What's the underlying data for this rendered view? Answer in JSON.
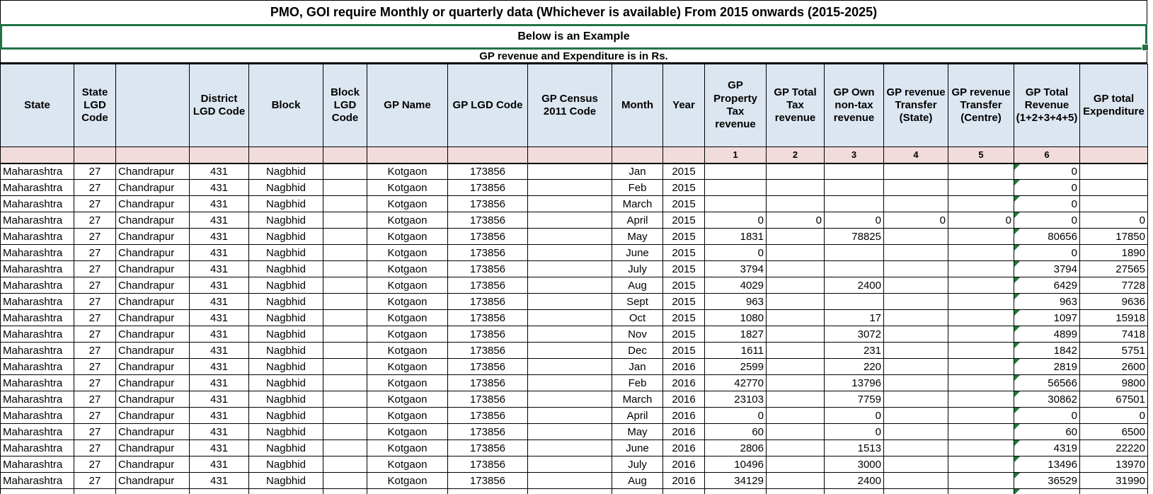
{
  "title": "PMO, GOI require Monthly or quarterly data (Whichever is available) From 2015 onwards (2015-2025)",
  "banner": "Below is an Example",
  "note": "GP revenue and Expenditure is in Rs.",
  "colors": {
    "selection_green": "#217346",
    "flag_green": "#1e7b3c",
    "header_fill": "#dce6f1",
    "index_row_fill": "#f2dcdb",
    "grid_border": "#000000"
  },
  "table": {
    "columns": [
      {
        "label": "State",
        "index": ""
      },
      {
        "label": "State LGD Code",
        "index": ""
      },
      {
        "label": "",
        "index": ""
      },
      {
        "label": "District LGD Code",
        "index": ""
      },
      {
        "label": "Block",
        "index": ""
      },
      {
        "label": "Block LGD Code",
        "index": ""
      },
      {
        "label": "GP Name",
        "index": ""
      },
      {
        "label": "GP LGD Code",
        "index": ""
      },
      {
        "label": "GP Census 2011 Code",
        "index": ""
      },
      {
        "label": "Month",
        "index": ""
      },
      {
        "label": "Year",
        "index": ""
      },
      {
        "label": "GP Property Tax revenue",
        "index": "1"
      },
      {
        "label": "GP Total Tax revenue",
        "index": "2"
      },
      {
        "label": "GP Own non-tax revenue",
        "index": "3"
      },
      {
        "label": "GP revenue Transfer (State)",
        "index": "4"
      },
      {
        "label": "GP revenue Transfer (Centre)",
        "index": "5"
      },
      {
        "label": "GP Total Revenue (1+2+3+4+5)",
        "index": "6"
      },
      {
        "label": "GP total Expenditure",
        "index": ""
      }
    ],
    "rows": [
      {
        "flag": true,
        "cells": [
          "Maharashtra",
          "27",
          "Chandrapur",
          "431",
          "Nagbhid",
          "",
          "Kotgaon",
          "173856",
          "",
          "Jan",
          "2015",
          "",
          "",
          "",
          "",
          "",
          "0",
          ""
        ]
      },
      {
        "flag": true,
        "cells": [
          "Maharashtra",
          "27",
          "Chandrapur",
          "431",
          "Nagbhid",
          "",
          "Kotgaon",
          "173856",
          "",
          "Feb",
          "2015",
          "",
          "",
          "",
          "",
          "",
          "0",
          ""
        ]
      },
      {
        "flag": true,
        "cells": [
          "Maharashtra",
          "27",
          "Chandrapur",
          "431",
          "Nagbhid",
          "",
          "Kotgaon",
          "173856",
          "",
          "March",
          "2015",
          "",
          "",
          "",
          "",
          "",
          "0",
          ""
        ]
      },
      {
        "flag": true,
        "cells": [
          "Maharashtra",
          "27",
          "Chandrapur",
          "431",
          "Nagbhid",
          "",
          "Kotgaon",
          "173856",
          "",
          "April",
          "2015",
          "0",
          "0",
          "0",
          "0",
          "0",
          "0",
          "0"
        ]
      },
      {
        "flag": true,
        "cells": [
          "Maharashtra",
          "27",
          "Chandrapur",
          "431",
          "Nagbhid",
          "",
          "Kotgaon",
          "173856",
          "",
          "May",
          "2015",
          "1831",
          "",
          "78825",
          "",
          "",
          "80656",
          "17850"
        ]
      },
      {
        "flag": true,
        "cells": [
          "Maharashtra",
          "27",
          "Chandrapur",
          "431",
          "Nagbhid",
          "",
          "Kotgaon",
          "173856",
          "",
          "June",
          "2015",
          "0",
          "",
          "",
          "",
          "",
          "0",
          "1890"
        ]
      },
      {
        "flag": true,
        "cells": [
          "Maharashtra",
          "27",
          "Chandrapur",
          "431",
          "Nagbhid",
          "",
          "Kotgaon",
          "173856",
          "",
          "July",
          "2015",
          "3794",
          "",
          "",
          "",
          "",
          "3794",
          "27565"
        ]
      },
      {
        "flag": true,
        "cells": [
          "Maharashtra",
          "27",
          "Chandrapur",
          "431",
          "Nagbhid",
          "",
          "Kotgaon",
          "173856",
          "",
          "Aug",
          "2015",
          "4029",
          "",
          "2400",
          "",
          "",
          "6429",
          "7728"
        ]
      },
      {
        "flag": true,
        "cells": [
          "Maharashtra",
          "27",
          "Chandrapur",
          "431",
          "Nagbhid",
          "",
          "Kotgaon",
          "173856",
          "",
          "Sept",
          "2015",
          "963",
          "",
          "",
          "",
          "",
          "963",
          "9636"
        ]
      },
      {
        "flag": true,
        "cells": [
          "Maharashtra",
          "27",
          "Chandrapur",
          "431",
          "Nagbhid",
          "",
          "Kotgaon",
          "173856",
          "",
          "Oct",
          "2015",
          "1080",
          "",
          "17",
          "",
          "",
          "1097",
          "15918"
        ]
      },
      {
        "flag": true,
        "cells": [
          "Maharashtra",
          "27",
          "Chandrapur",
          "431",
          "Nagbhid",
          "",
          "Kotgaon",
          "173856",
          "",
          "Nov",
          "2015",
          "1827",
          "",
          "3072",
          "",
          "",
          "4899",
          "7418"
        ]
      },
      {
        "flag": true,
        "cells": [
          "Maharashtra",
          "27",
          "Chandrapur",
          "431",
          "Nagbhid",
          "",
          "Kotgaon",
          "173856",
          "",
          "Dec",
          "2015",
          "1611",
          "",
          "231",
          "",
          "",
          "1842",
          "5751"
        ]
      },
      {
        "flag": true,
        "cells": [
          "Maharashtra",
          "27",
          "Chandrapur",
          "431",
          "Nagbhid",
          "",
          "Kotgaon",
          "173856",
          "",
          "Jan",
          "2016",
          "2599",
          "",
          "220",
          "",
          "",
          "2819",
          "2600"
        ]
      },
      {
        "flag": true,
        "cells": [
          "Maharashtra",
          "27",
          "Chandrapur",
          "431",
          "Nagbhid",
          "",
          "Kotgaon",
          "173856",
          "",
          "Feb",
          "2016",
          "42770",
          "",
          "13796",
          "",
          "",
          "56566",
          "9800"
        ]
      },
      {
        "flag": true,
        "cells": [
          "Maharashtra",
          "27",
          "Chandrapur",
          "431",
          "Nagbhid",
          "",
          "Kotgaon",
          "173856",
          "",
          "March",
          "2016",
          "23103",
          "",
          "7759",
          "",
          "",
          "30862",
          "67501"
        ]
      },
      {
        "flag": true,
        "cells": [
          "Maharashtra",
          "27",
          "Chandrapur",
          "431",
          "Nagbhid",
          "",
          "Kotgaon",
          "173856",
          "",
          "April",
          "2016",
          "0",
          "",
          "0",
          "",
          "",
          "0",
          "0"
        ]
      },
      {
        "flag": true,
        "cells": [
          "Maharashtra",
          "27",
          "Chandrapur",
          "431",
          "Nagbhid",
          "",
          "Kotgaon",
          "173856",
          "",
          "May",
          "2016",
          "60",
          "",
          "0",
          "",
          "",
          "60",
          "6500"
        ]
      },
      {
        "flag": true,
        "cells": [
          "Maharashtra",
          "27",
          "Chandrapur",
          "431",
          "Nagbhid",
          "",
          "Kotgaon",
          "173856",
          "",
          "June",
          "2016",
          "2806",
          "",
          "1513",
          "",
          "",
          "4319",
          "22220"
        ]
      },
      {
        "flag": true,
        "cells": [
          "Maharashtra",
          "27",
          "Chandrapur",
          "431",
          "Nagbhid",
          "",
          "Kotgaon",
          "173856",
          "",
          "July",
          "2016",
          "10496",
          "",
          "3000",
          "",
          "",
          "13496",
          "13970"
        ]
      },
      {
        "flag": true,
        "cells": [
          "Maharashtra",
          "27",
          "Chandrapur",
          "431",
          "Nagbhid",
          "",
          "Kotgaon",
          "173856",
          "",
          "Aug",
          "2016",
          "34129",
          "",
          "2400",
          "",
          "",
          "36529",
          "31990"
        ]
      },
      {
        "flag": true,
        "cells": [
          "",
          "",
          "",
          "",
          "",
          "",
          "",
          "",
          "",
          "",
          "",
          "",
          "",
          "",
          "",
          "",
          "",
          ""
        ]
      }
    ]
  }
}
